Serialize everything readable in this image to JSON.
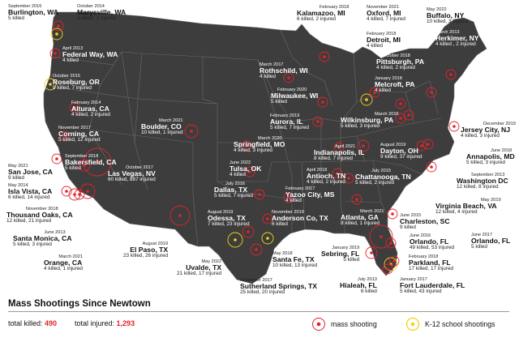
{
  "title": "Mass Shootings Since Newtown",
  "totals": {
    "killed_label": "total killed:",
    "killed_value": "490",
    "injured_label": "total injured:",
    "injured_value": "1,293"
  },
  "legend": {
    "mass_label": "mass shooting",
    "k12_label": "K-12 school shootings"
  },
  "colors": {
    "map_fill": "#3d3d3d",
    "border": "#6a6a6a",
    "mass": "#e3232c",
    "k12": "#f2d21a"
  },
  "events": [
    {
      "date": "September 2016",
      "city": "Burlington, WA",
      "stat": "5 killed"
    },
    {
      "date": "October 2014",
      "city": "Marysville, WA",
      "stat": "4 killed, 1 injured"
    },
    {
      "date": "April 2013",
      "city": "Federal Way, WA",
      "stat": "4 killed"
    },
    {
      "date": "October 2015",
      "city": "Roseburg, OR",
      "stat": "9 killed, 7 injured"
    },
    {
      "date": "February 2014",
      "city": "Alturas, CA",
      "stat": "4 killed, 2 injured"
    },
    {
      "date": "November 2017",
      "city": "Corning, CA",
      "stat": "5 killed, 12 injured"
    },
    {
      "date": "May 2021",
      "city": "San Jose, CA",
      "stat": "9 killed"
    },
    {
      "date": "September 2018",
      "city": "Bakersfield, CA",
      "stat": "5 killed"
    },
    {
      "date": "May 2014",
      "city": "Isla Vista, CA",
      "stat": "6 killed, 14 injured"
    },
    {
      "date": "November 2018",
      "city": "Thousand Oaks, CA",
      "stat": "12 killed, 21 injured"
    },
    {
      "date": "June 2013",
      "city": "Santa Monica, CA",
      "stat": "5 killed, 3 injured"
    },
    {
      "date": "March 2021",
      "city": "Orange, CA",
      "stat": "4 killed, 1 injured"
    },
    {
      "date": "October 2017",
      "city": "Las Vegas, NV",
      "stat": "60 killed, 887 injured"
    },
    {
      "date": "March 2021",
      "city": "Boulder, CO",
      "stat": "10 killed, 1 injured"
    },
    {
      "date": "August 2019",
      "city": "El Paso, TX",
      "stat": "23 killed, 26 injured"
    },
    {
      "date": "May 2022",
      "city": "Uvalde, TX",
      "stat": "21 killed, 17 injured"
    },
    {
      "date": "August 2019",
      "city": "Odessa, TX",
      "stat": "7 killed, 23 injured"
    },
    {
      "date": "May 2018",
      "city": "Santa Fe, TX",
      "stat": "10 killed, 13 injured"
    },
    {
      "date": "November 2017",
      "city": "Sutherland Springs, TX",
      "stat": "25 killed, 20 injured"
    },
    {
      "date": "March 2017",
      "city": "Rothschild, WI",
      "stat": "4 killed"
    },
    {
      "date": "February 2020",
      "city": "Milwaukee, WI",
      "stat": "5 killed"
    },
    {
      "date": "February 2019",
      "city": "Aurora, IL",
      "stat": "5 killed, 7 injured"
    },
    {
      "date": "March 2020",
      "city": "Springfield, MO",
      "stat": "4 killed, 3 injured"
    },
    {
      "date": "June 2022",
      "city": "Tulsa, OK",
      "stat": "4 killed"
    },
    {
      "date": "July 2016",
      "city": "Dallas, TX",
      "stat": "5 killed, 7 injured"
    },
    {
      "date": "February 2017",
      "city": "Yazoo City, MS",
      "stat": "4 killed"
    },
    {
      "date": "November 2019",
      "city": "Anderson Co, TX",
      "stat": "6 killed"
    },
    {
      "date": "April 2021",
      "city": "Indianapolis, IL",
      "stat": "8 killed, 7 injured"
    },
    {
      "date": "April 2018",
      "city": "Antioch, TN",
      "stat": "4 killed, 2 injured"
    },
    {
      "date": "August 2019",
      "city": "Dayton, OH",
      "stat": "9 killed, 37 injured"
    },
    {
      "date": "July 2015",
      "city": "Chattanooga, TN",
      "stat": "5 killed, 2 injured"
    },
    {
      "date": "March 2021",
      "city": "Atlanta, GA",
      "stat": "8 killed, 1 injured"
    },
    {
      "date": "February 2018",
      "city": "Kalamazoo, MI",
      "stat": "6 killed, 2 injured"
    },
    {
      "date": "November 2021",
      "city": "Oxford, MI",
      "stat": "4 killed, 7 injured"
    },
    {
      "date": "February 2018",
      "city": "Detroit, MI",
      "stat": "4 killed"
    },
    {
      "date": "October 2018",
      "city": "Pittsburgh, PA",
      "stat": "4 killed, 2 injured"
    },
    {
      "date": "January 2018",
      "city": "Melcroft, PA",
      "stat": "4 killed"
    },
    {
      "date": "March 2016",
      "city": "Wilkinsburg, PA",
      "stat": "5 killed, 3 injured"
    },
    {
      "date": "May 2022",
      "city": "Buffalo, NY",
      "stat": "10 killed, 3 injured"
    },
    {
      "date": "March 2013",
      "city": "Herkimer, NY",
      "stat": "4 killed , 2 injured"
    },
    {
      "date": "December 2019",
      "city": "Jersey City, NJ",
      "stat": "4 killed, 3 injured"
    },
    {
      "date": "June 2018",
      "city": "Annapolis, MD",
      "stat": "5 killed, 3 injured"
    },
    {
      "date": "September 2013",
      "city": "Washington DC",
      "stat": "12 killed, 8 injured"
    },
    {
      "date": "May 2019",
      "city": "Virginia Beach, VA",
      "stat": "12 killed, 4 injured"
    },
    {
      "date": "June 2015",
      "city": "Charleston, SC",
      "stat": "9 killed"
    },
    {
      "date": "June 2016",
      "city": "Orlando, FL",
      "stat": "49 killed, 53 injured"
    },
    {
      "date": "June 2017",
      "city": "Orlando, FL",
      "stat": "5 killed"
    },
    {
      "date": "January 2019",
      "city": "Sebring, FL",
      "stat": "5 killed"
    },
    {
      "date": "February 2018",
      "city": "Parkland, FL",
      "stat": "17 killed, 17 injured"
    },
    {
      "date": "July 2013",
      "city": "Hialeah, FL",
      "stat": "6 killed"
    },
    {
      "date": "January 2017",
      "city": "Fort Lauderdale, FL",
      "stat": "5 killed, 43 injured"
    }
  ]
}
